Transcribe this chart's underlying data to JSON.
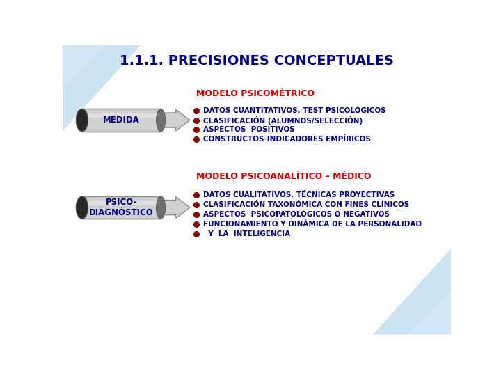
{
  "title": "1.1.1. PRECISIONES CONCEPTUALES",
  "title_color": "#000080",
  "title_fontsize": 14,
  "bg_color": "#ffffff",
  "section1_label": "MODELO PSICOMÉTRICO",
  "section1_color": "#cc0000",
  "section1_fontsize": 9,
  "section2_label": "MODELO PSICOANALÍTICO – MÉDICO",
  "section2_color": "#cc0000",
  "section2_fontsize": 9,
  "arrow1_label": "MEDIDA",
  "arrow2_label": "PSICO-\nDIAGNÓSTICO",
  "arrow_text_color": "#000080",
  "arrow_body_color": "#d0d0d0",
  "arrow_dark_color": "#282828",
  "bullet_color": "#8B0000",
  "bullet_text_color": "#000080",
  "bullet_fontsize": 7.5,
  "items1": [
    "DATOS CUANTITATIVOS. TEST PSICOLÓGICOS",
    "CLASIFICACIÓN (ALUMNOS/SELECCIÓN)",
    "ASPECTOS  POSITIVOS",
    "CONSTRUCTOS-INDICADORES EMPÍRICOS"
  ],
  "items2": [
    "DATOS CUALITATIVOS. TÉCNICAS PROYECTIVAS",
    "CLASIFICACIÓN TAXONÓMICA CON FINES CLÍNICOS",
    "ASPECTOS  PSICOPATOLÓGICOS O NEGATIVOS",
    "FUNCIONAMIENTO Y DINÁMICA DE LA PERSONALIDAD",
    "  Y  LA  INTELIGENCIA"
  ]
}
